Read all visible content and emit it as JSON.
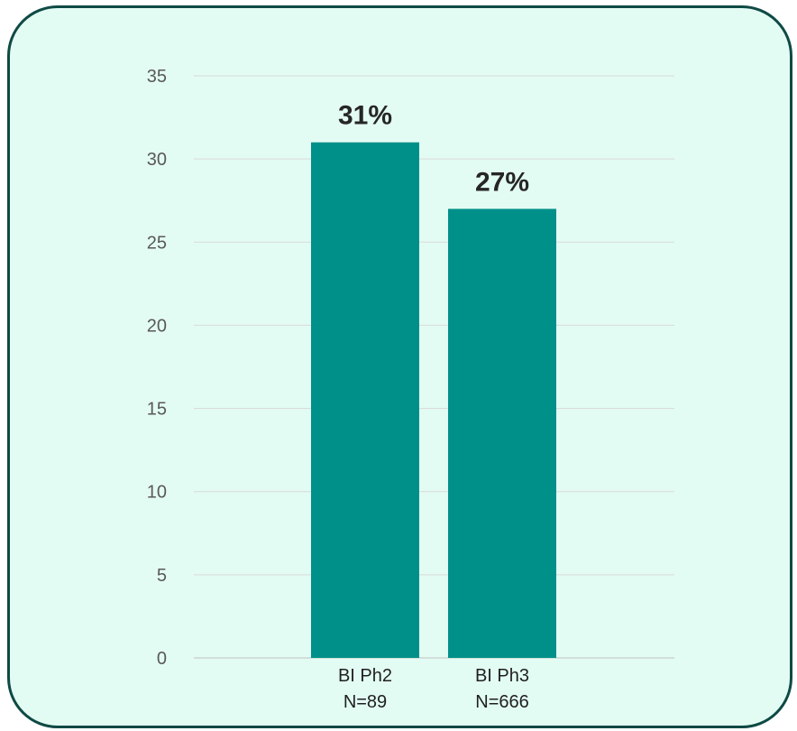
{
  "chart_data": {
    "type": "bar",
    "categories": [
      "BI Ph2\nN=89",
      "BI Ph3\nN=666"
    ],
    "values": [
      31,
      27
    ],
    "data_labels": [
      "31%",
      "27%"
    ],
    "ylim": [
      0,
      35
    ],
    "yticks": [
      0,
      5,
      10,
      15,
      20,
      25,
      30,
      35
    ],
    "grid": true,
    "bar_color": "#00908a",
    "background_color": "#e3fcf3",
    "border_color": "#0f4a45"
  }
}
